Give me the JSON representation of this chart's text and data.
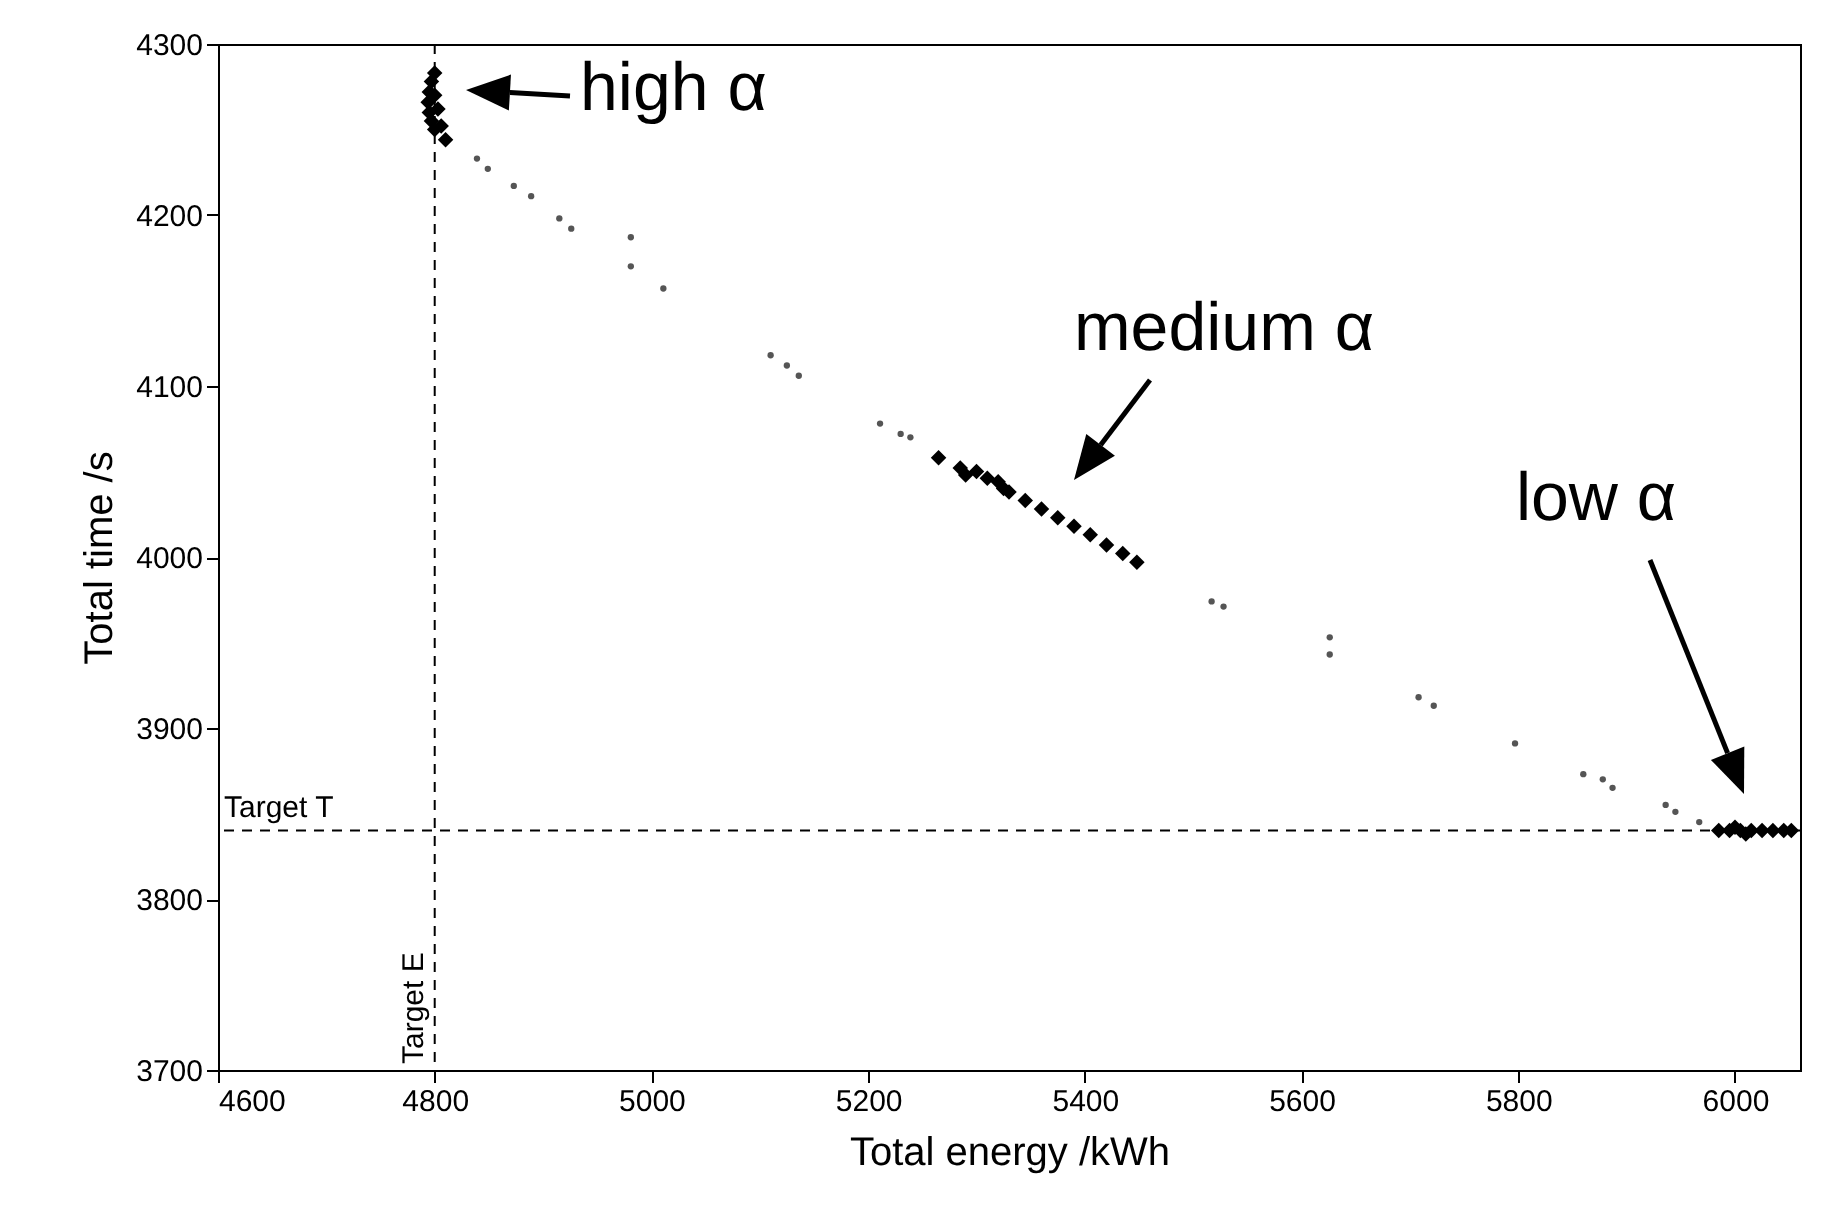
{
  "chart_data": {
    "type": "scatter",
    "xlabel": "Total energy /kWh",
    "ylabel": "Total time /s",
    "xlim": [
      4600,
      6060
    ],
    "xticks": [
      4600,
      4800,
      5000,
      5200,
      5400,
      5600,
      5800,
      6000
    ],
    "ylim": [
      3700,
      4300
    ],
    "yticks": [
      3700,
      3800,
      3900,
      4000,
      4100,
      4200,
      4300
    ],
    "grid": false,
    "series": [
      {
        "color": "#555555",
        "marker": "circle",
        "x": [
          4839,
          4849,
          4873,
          4889,
          4915,
          4926,
          4981,
          4981,
          5011,
          5110,
          5125,
          5136,
          5211,
          5230,
          5239,
          5517,
          5528,
          5626,
          5626,
          5708,
          5722,
          5797,
          5860,
          5878,
          5887,
          5936,
          5945,
          5967
        ],
        "values": [
          4233,
          4227,
          4217,
          4211,
          4198,
          4192,
          4187,
          4170,
          4157,
          4118,
          4112,
          4106,
          4078,
          4072,
          4070,
          3974,
          3971,
          3953,
          3943,
          3918,
          3913,
          3891,
          3873,
          3870,
          3865,
          3855,
          3851,
          3845
        ]
      },
      {
        "color": "#000000",
        "marker": "diamond",
        "x": [
          4800,
          4797,
          4795,
          4794,
          4795,
          4797,
          4800,
          4810,
          4803,
          4800,
          4806,
          5265,
          5285,
          5290,
          5300,
          5310,
          5320,
          5325,
          5330,
          5345,
          5360,
          5375,
          5390,
          5405,
          5420,
          5435,
          5448,
          5985,
          5995,
          6000,
          6005,
          6010,
          6015,
          6025,
          6035,
          6045,
          6052
        ],
        "values": [
          4283,
          4278,
          4272,
          4266,
          4260,
          4255,
          4250,
          4244,
          4262,
          4270,
          4252,
          4058,
          4052,
          4048,
          4050,
          4046,
          4044,
          4040,
          4038,
          4033,
          4028,
          4023,
          4018,
          4013,
          4007,
          4002,
          3997,
          3840,
          3840,
          3842,
          3840,
          3838,
          3840,
          3840,
          3840,
          3840,
          3840
        ]
      }
    ],
    "ref_lines": [
      {
        "axis": "y",
        "value": 3840,
        "label": "Target T",
        "line_style": "dashed",
        "color": "#000000"
      },
      {
        "axis": "x",
        "value": 4800,
        "label": "Target E",
        "line_style": "dashed",
        "color": "#000000"
      }
    ],
    "annotations": [
      "high α",
      "medium α",
      "low α"
    ]
  }
}
